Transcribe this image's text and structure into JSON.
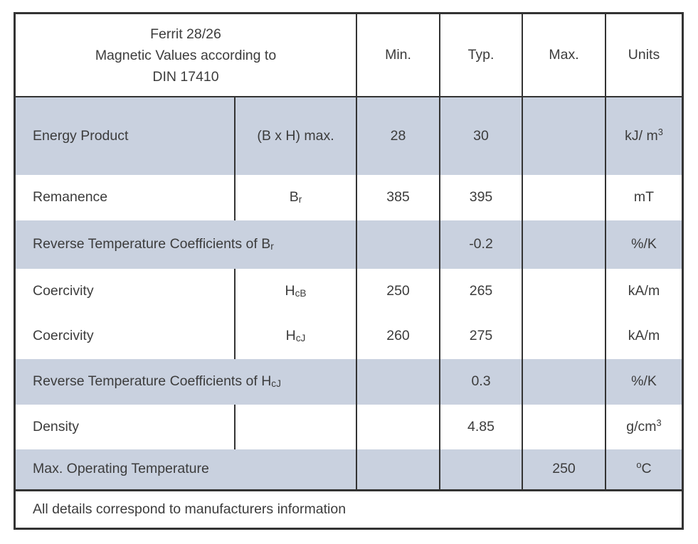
{
  "colors": {
    "shaded_row": "#c9d1df",
    "border": "#333333",
    "text": "#3c3c3c",
    "background": "#ffffff"
  },
  "table": {
    "header": {
      "title_lines": [
        "Ferrit 28/26",
        "Magnetic Values according to",
        "DIN 17410"
      ],
      "columns": {
        "min": "Min.",
        "typ": "Typ.",
        "max": "Max.",
        "units": "Units"
      }
    },
    "rows": [
      {
        "label": {
          "main": "Energy Product",
          "sub": ""
        },
        "symbol": {
          "main": "(B x H) max.",
          "sub": ""
        },
        "min": "28",
        "typ": "30",
        "max": "",
        "units": {
          "pre": "",
          "main": "kJ/ m",
          "sup": "3"
        }
      },
      {
        "label": {
          "main": "Remanence",
          "sub": ""
        },
        "symbol": {
          "main": "B",
          "sub": "r"
        },
        "min": "385",
        "typ": "395",
        "max": "",
        "units": {
          "pre": "",
          "main": "mT",
          "sup": ""
        }
      },
      {
        "label": {
          "main": "Reverse Temperature Coefficients of B",
          "sub": "r"
        },
        "min": "",
        "typ": "-0.2",
        "max": "",
        "units": {
          "pre": "",
          "main": "%/K",
          "sup": ""
        }
      },
      {
        "label": {
          "main": "Coercivity",
          "sub": ""
        },
        "symbol": {
          "main": "H",
          "sub": "cB"
        },
        "min": "250",
        "typ": "265",
        "max": "",
        "units": {
          "pre": "",
          "main": "kA/m",
          "sup": ""
        }
      },
      {
        "label": {
          "main": "Coercivity",
          "sub": ""
        },
        "symbol": {
          "main": "H",
          "sub": "cJ"
        },
        "min": "260",
        "typ": "275",
        "max": "",
        "units": {
          "pre": "",
          "main": "kA/m",
          "sup": ""
        }
      },
      {
        "label": {
          "main": "Reverse Temperature Coefficients of H",
          "sub": "cJ"
        },
        "min": "",
        "typ": "0.3",
        "max": "",
        "units": {
          "pre": "",
          "main": "%/K",
          "sup": ""
        }
      },
      {
        "label": {
          "main": "Density",
          "sub": ""
        },
        "symbol": {
          "main": "",
          "sub": ""
        },
        "min": "",
        "typ": "4.85",
        "max": "",
        "units": {
          "pre": "",
          "main": "g/cm",
          "sup": "3"
        }
      },
      {
        "label": {
          "main": "Max. Operating Temperature",
          "sub": ""
        },
        "min": "",
        "typ": "",
        "max": "250",
        "units": {
          "pre": "o",
          "main": "C",
          "sup": ""
        }
      }
    ],
    "footer": "All details correspond to manufacturers information"
  }
}
